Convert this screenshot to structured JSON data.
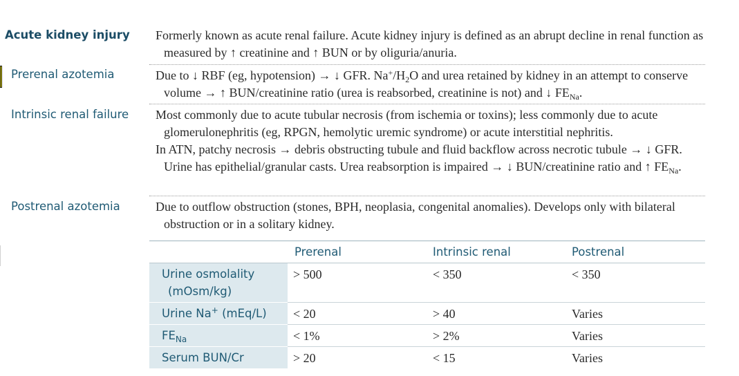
{
  "rows": [
    {
      "term": "Acute kidney injury",
      "def": [
        "Formerly known as acute renal failure. Acute kidney injury is defined as an abrupt decline in renal function as measured by ↑ creatinine and ↑ BUN or by oliguria/anuria."
      ]
    },
    {
      "term": "Prerenal azotemia",
      "def_parts": {
        "a": "Due to ↓ RBF (eg, hypotension) → ↓ GFR. Na",
        "a_sup": "+",
        "b": "/H",
        "b_sub": "2",
        "c": "O and urea retained by kidney in an attempt to conserve volume → ↑ BUN/creatinine ratio (urea is reabsorbed, creatinine is not) and ↓ FE",
        "c_sub": "Na",
        "d": "."
      }
    },
    {
      "term": "Intrinsic renal failure",
      "def_p1": "Most commonly due to acute tubular necrosis (from ischemia or toxins); less commonly due to acute glomerulonephritis (eg, RPGN, hemolytic uremic syndrome) or acute interstitial nephritis.",
      "def_p2": "In ATN, patchy necrosis → debris obstructing tubule and fluid backflow across necrotic tubule → ↓ GFR. Urine has epithelial/granular casts. Urea reabsorption is impaired → ↓ BUN/creatinine ratio and ↑ FE",
      "def_p2_sub": "Na",
      "def_p2_end": "."
    },
    {
      "term": "Postrenal azotemia",
      "def": [
        "Due to outflow obstruction (stones, BPH, neoplasia, congenital anomalies). Develops only with bilateral obstruction or in a solitary kidney."
      ]
    }
  ],
  "table": {
    "headers": [
      "Prerenal",
      "Intrinsic renal",
      "Postrenal"
    ],
    "rows": [
      {
        "label": "Urine osmolality",
        "label2": "(mOsm/kg)",
        "values": [
          "> 500",
          "< 350",
          "< 350"
        ]
      },
      {
        "label": "Urine Na",
        "label_sup": "+",
        "label_tail": " (mEq/L)",
        "values": [
          "< 20",
          "> 40",
          "Varies"
        ]
      },
      {
        "label": "FE",
        "label_sub": "Na",
        "values": [
          "< 1%",
          "> 2%",
          "Varies"
        ]
      },
      {
        "label": "Serum BUN/Cr",
        "values": [
          "> 20",
          "< 15",
          "Varies"
        ]
      }
    ]
  }
}
